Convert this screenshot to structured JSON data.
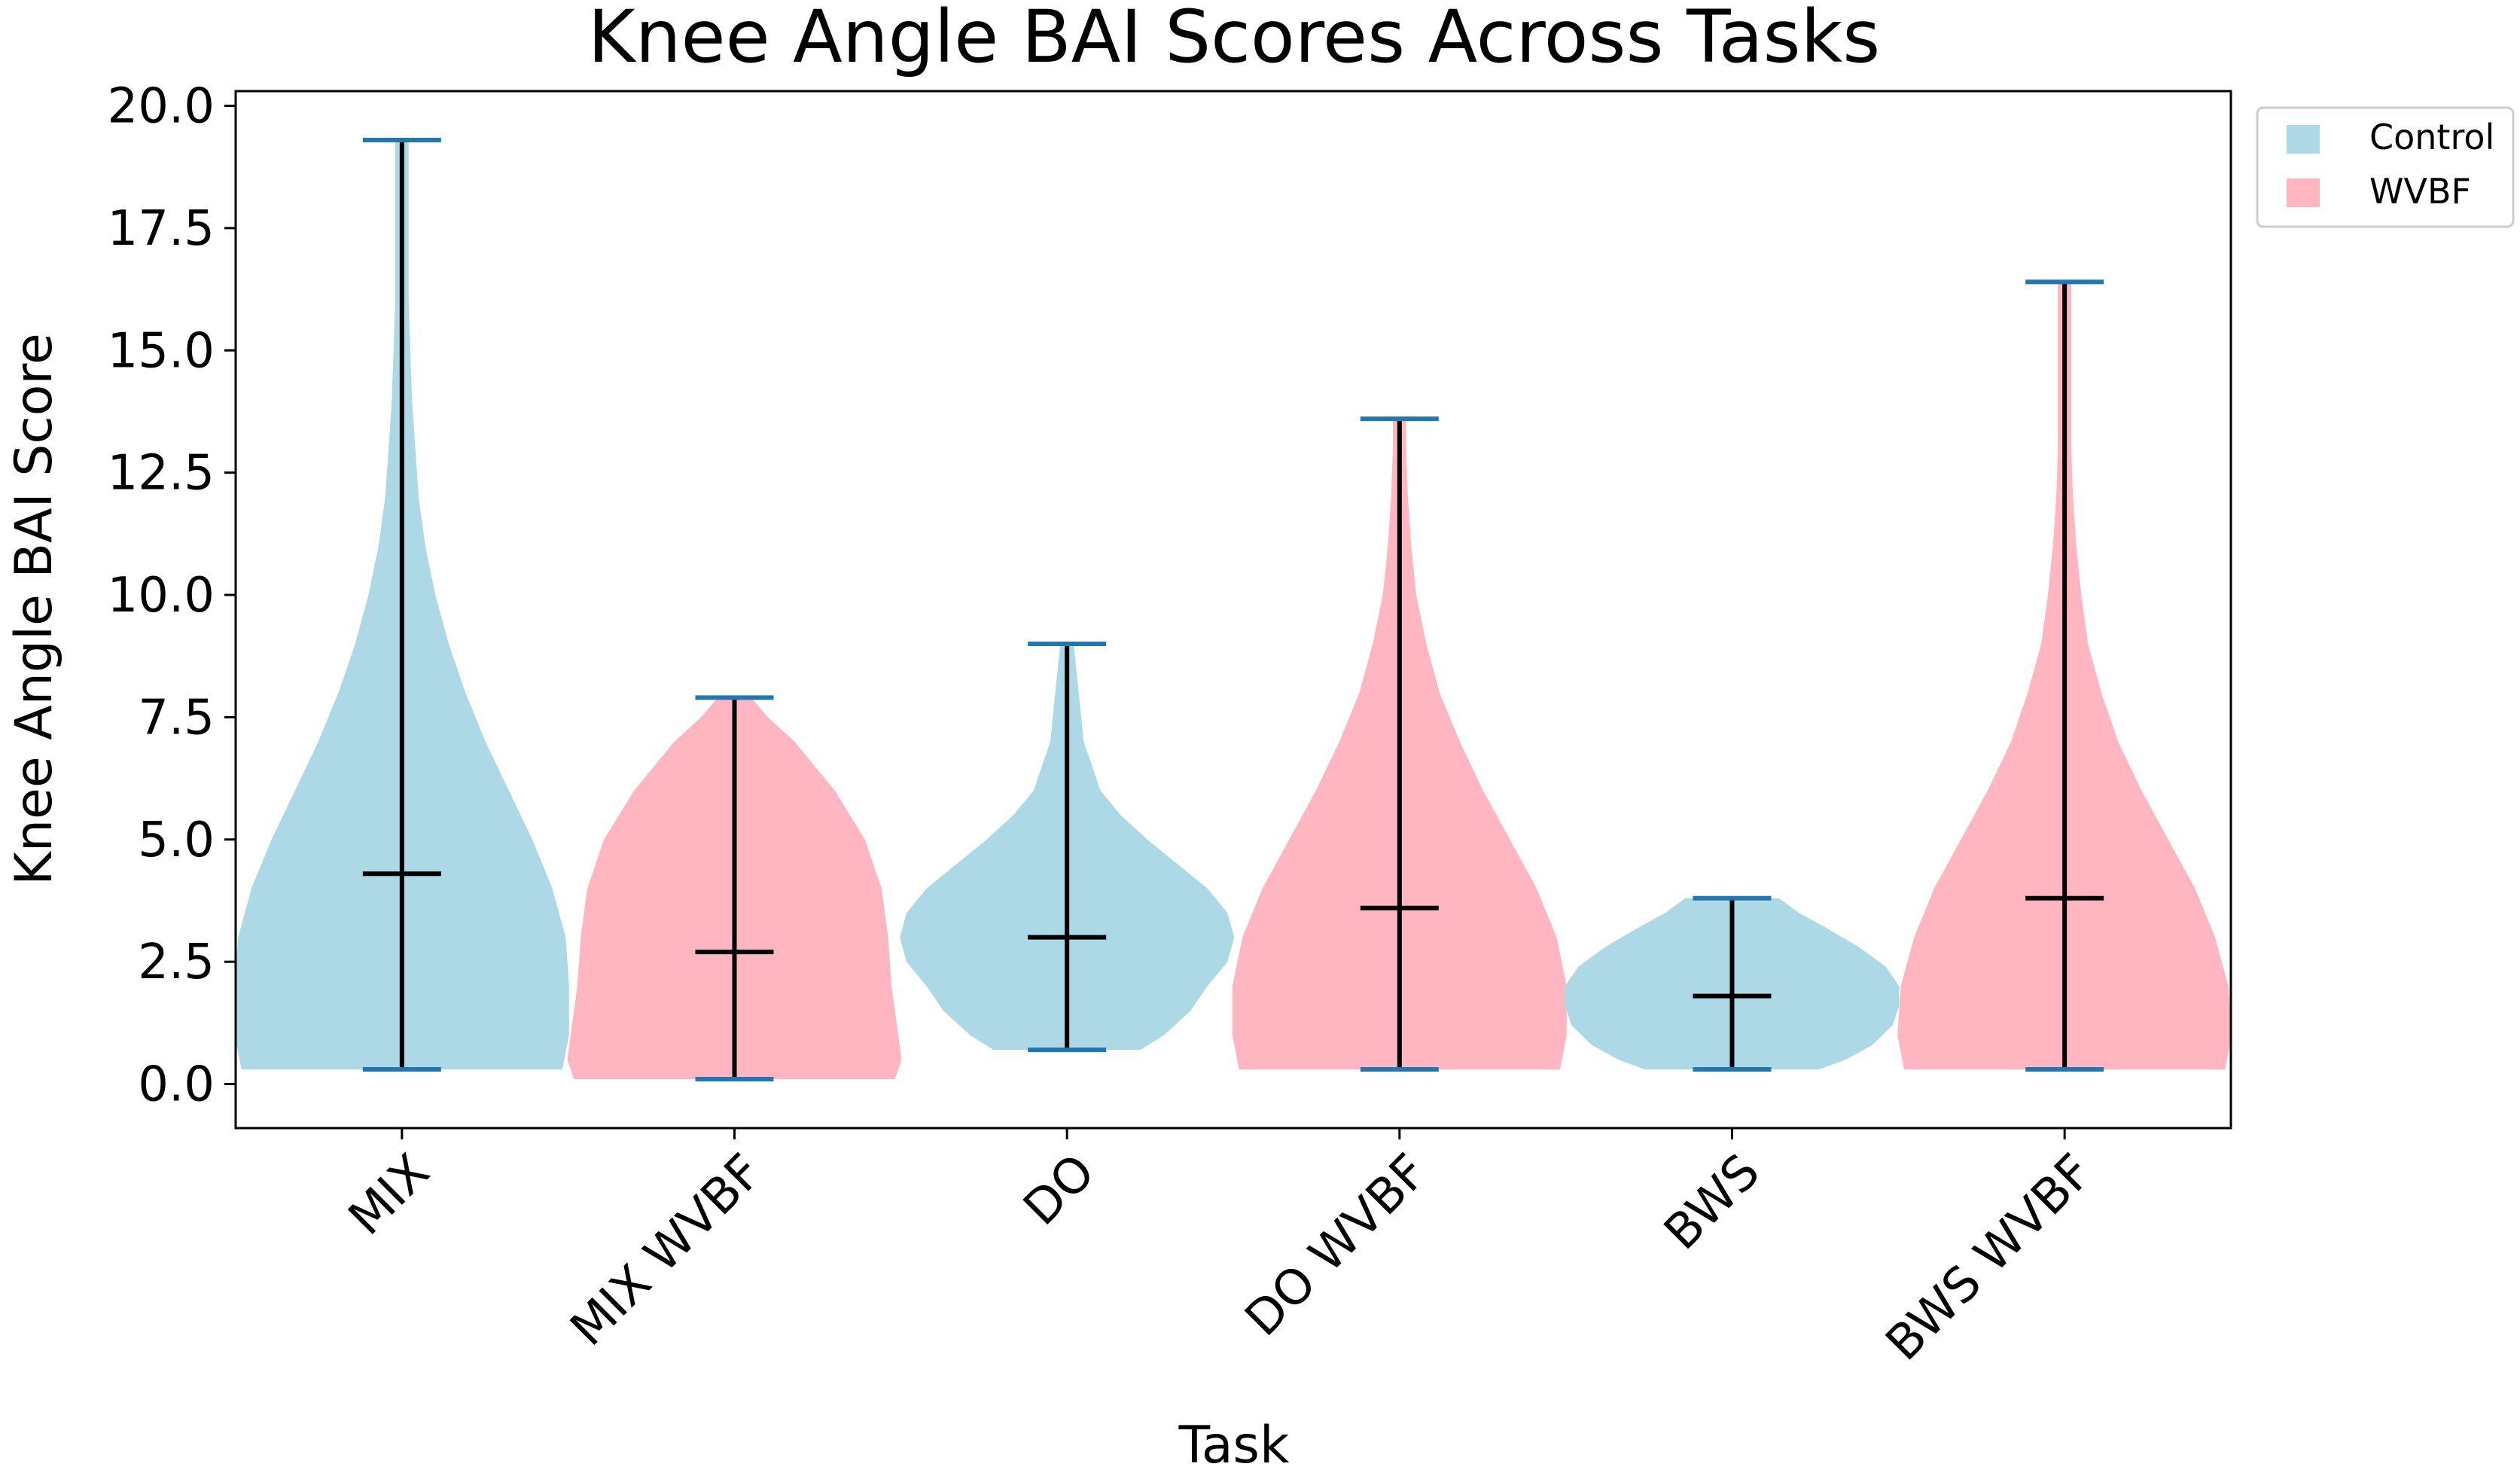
{
  "chart_data": {
    "type": "violin",
    "title": "Knee Angle BAI Scores Across Tasks",
    "xlabel": "Task",
    "ylabel": "Knee Angle BAI Score",
    "ylim": [
      -0.9,
      20.3
    ],
    "yticks": [
      0.0,
      2.5,
      5.0,
      7.5,
      10.0,
      12.5,
      15.0,
      17.5,
      20.0
    ],
    "ytick_labels": [
      "0.0",
      "2.5",
      "5.0",
      "7.5",
      "10.0",
      "12.5",
      "15.0",
      "17.5",
      "20.0"
    ],
    "grid": false,
    "legend_position": "outside-top-right",
    "legend": [
      {
        "label": "Control",
        "color": "#add8e6"
      },
      {
        "label": "WVBF",
        "color": "#ffb6c1"
      }
    ],
    "extrema_color": "#1f77b4",
    "median_color": "#000000",
    "categories": [
      "MIX",
      "MIX WVBF",
      "DO",
      "DO WVBF",
      "BWS",
      "BWS WVBF"
    ],
    "violins": [
      {
        "category": "MIX",
        "group": "Control",
        "min": 0.3,
        "max": 19.3,
        "median": 4.3,
        "profile": [
          [
            0.3,
            0.48
          ],
          [
            1,
            0.5
          ],
          [
            2,
            0.5
          ],
          [
            3,
            0.49
          ],
          [
            4,
            0.45
          ],
          [
            5,
            0.39
          ],
          [
            6,
            0.32
          ],
          [
            7,
            0.25
          ],
          [
            8,
            0.19
          ],
          [
            9,
            0.14
          ],
          [
            10,
            0.1
          ],
          [
            11,
            0.07
          ],
          [
            12,
            0.05
          ],
          [
            13,
            0.04
          ],
          [
            14,
            0.03
          ],
          [
            15,
            0.025
          ],
          [
            16,
            0.02
          ],
          [
            17,
            0.02
          ],
          [
            18,
            0.02
          ],
          [
            19.3,
            0.02
          ]
        ]
      },
      {
        "category": "MIX WVBF",
        "group": "WVBF",
        "min": 0.1,
        "max": 7.9,
        "median": 2.7,
        "profile": [
          [
            0.1,
            0.48
          ],
          [
            0.5,
            0.5
          ],
          [
            1,
            0.49
          ],
          [
            2,
            0.47
          ],
          [
            3,
            0.46
          ],
          [
            4,
            0.44
          ],
          [
            5,
            0.39
          ],
          [
            6,
            0.3
          ],
          [
            7,
            0.18
          ],
          [
            7.5,
            0.1
          ],
          [
            7.9,
            0.05
          ]
        ]
      },
      {
        "category": "DO",
        "group": "Control",
        "min": 0.7,
        "max": 9.0,
        "median": 3.0,
        "profile": [
          [
            0.7,
            0.22
          ],
          [
            1,
            0.29
          ],
          [
            1.5,
            0.37
          ],
          [
            2,
            0.42
          ],
          [
            2.5,
            0.48
          ],
          [
            3,
            0.5
          ],
          [
            3.5,
            0.48
          ],
          [
            4,
            0.42
          ],
          [
            4.5,
            0.33
          ],
          [
            5,
            0.24
          ],
          [
            5.5,
            0.16
          ],
          [
            6,
            0.1
          ],
          [
            7,
            0.05
          ],
          [
            8,
            0.035
          ],
          [
            9,
            0.02
          ]
        ]
      },
      {
        "category": "DO WVBF",
        "group": "WVBF",
        "min": 0.3,
        "max": 13.6,
        "median": 3.6,
        "profile": [
          [
            0.3,
            0.48
          ],
          [
            1,
            0.5
          ],
          [
            2,
            0.5
          ],
          [
            3,
            0.47
          ],
          [
            4,
            0.41
          ],
          [
            5,
            0.33
          ],
          [
            6,
            0.25
          ],
          [
            7,
            0.18
          ],
          [
            8,
            0.12
          ],
          [
            9,
            0.08
          ],
          [
            10,
            0.05
          ],
          [
            11,
            0.035
          ],
          [
            12,
            0.025
          ],
          [
            13,
            0.02
          ],
          [
            13.6,
            0.02
          ]
        ]
      },
      {
        "category": "BWS",
        "group": "Control",
        "min": 0.3,
        "max": 3.8,
        "median": 1.8,
        "profile": [
          [
            0.3,
            0.26
          ],
          [
            0.5,
            0.34
          ],
          [
            0.8,
            0.42
          ],
          [
            1.2,
            0.48
          ],
          [
            1.6,
            0.5
          ],
          [
            2,
            0.5
          ],
          [
            2.4,
            0.46
          ],
          [
            2.8,
            0.38
          ],
          [
            3.2,
            0.28
          ],
          [
            3.5,
            0.2
          ],
          [
            3.8,
            0.14
          ]
        ]
      },
      {
        "category": "BWS WVBF",
        "group": "WVBF",
        "min": 0.3,
        "max": 16.4,
        "median": 3.8,
        "profile": [
          [
            0.3,
            0.48
          ],
          [
            1,
            0.5
          ],
          [
            2,
            0.49
          ],
          [
            3,
            0.45
          ],
          [
            4,
            0.39
          ],
          [
            5,
            0.31
          ],
          [
            6,
            0.23
          ],
          [
            7,
            0.16
          ],
          [
            8,
            0.11
          ],
          [
            9,
            0.07
          ],
          [
            10,
            0.05
          ],
          [
            11,
            0.035
          ],
          [
            12,
            0.025
          ],
          [
            13,
            0.02
          ],
          [
            14,
            0.02
          ],
          [
            15,
            0.02
          ],
          [
            16.4,
            0.02
          ]
        ]
      }
    ]
  }
}
